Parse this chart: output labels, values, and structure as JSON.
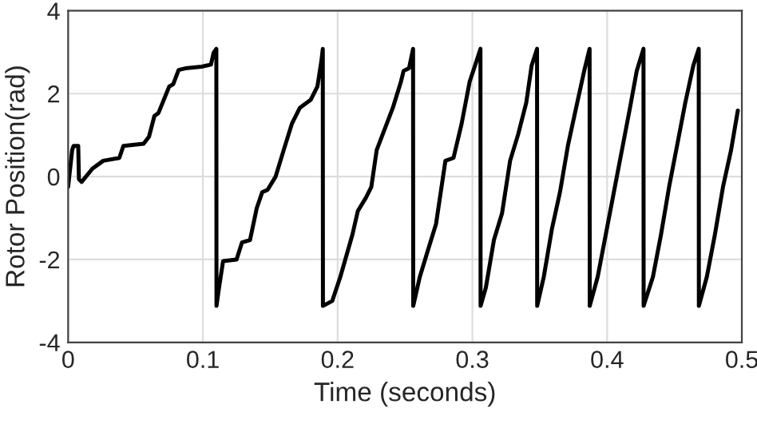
{
  "chart_data": {
    "type": "line",
    "xlabel": "Time (seconds)",
    "ylabel": "Rotor Position(rad)",
    "xlim": [
      0,
      0.5
    ],
    "xticks": [
      0,
      0.1,
      0.2,
      0.3,
      0.4,
      0.5
    ],
    "ylim": [
      -4,
      4
    ],
    "yticks": [
      -4,
      -2,
      0,
      2,
      4
    ],
    "grid": true,
    "legend": false,
    "line_style": "solid",
    "marker": "none",
    "series": [
      {
        "color": "#000000",
        "x": [
          0,
          0.003,
          0.004,
          0.0075,
          0.008,
          0.01,
          0.018,
          0.026,
          0.038,
          0.041,
          0.056,
          0.06,
          0.064,
          0.067,
          0.075,
          0.078,
          0.082,
          0.087,
          0.099,
          0.106,
          0.108,
          0.11,
          0.1101,
          0.112,
          0.115,
          0.125,
          0.129,
          0.135,
          0.14,
          0.144,
          0.148,
          0.154,
          0.16,
          0.166,
          0.172,
          0.18,
          0.185,
          0.188,
          0.189,
          0.1891,
          0.196,
          0.202,
          0.211,
          0.215,
          0.221,
          0.225,
          0.229,
          0.235,
          0.241,
          0.247,
          0.249,
          0.253,
          0.256,
          0.2561,
          0.261,
          0.267,
          0.273,
          0.28,
          0.286,
          0.292,
          0.298,
          0.302,
          0.306,
          0.3061,
          0.31,
          0.316,
          0.322,
          0.328,
          0.334,
          0.34,
          0.344,
          0.348,
          0.3481,
          0.353,
          0.359,
          0.365,
          0.371,
          0.377,
          0.383,
          0.387,
          0.3871,
          0.393,
          0.399,
          0.405,
          0.411,
          0.417,
          0.422,
          0.427,
          0.4271,
          0.434,
          0.44,
          0.446,
          0.452,
          0.458,
          0.464,
          0.468,
          0.4681,
          0.474,
          0.48,
          0.486,
          0.492,
          0.497
        ],
        "values": [
          -0.25,
          0.64,
          0.74,
          0.74,
          -0.06,
          -0.13,
          0.19,
          0.38,
          0.45,
          0.74,
          0.79,
          0.96,
          1.46,
          1.53,
          2.17,
          2.23,
          2.57,
          2.61,
          2.65,
          2.7,
          2.99,
          3.08,
          -3.12,
          -2.68,
          -2.04,
          -2.0,
          -1.59,
          -1.53,
          -0.76,
          -0.38,
          -0.32,
          0,
          0.64,
          1.27,
          1.66,
          1.85,
          2.17,
          2.8,
          3.08,
          -3.12,
          -3.0,
          -2.42,
          -1.4,
          -0.83,
          -0.51,
          -0.25,
          0.64,
          1.15,
          1.66,
          2.29,
          2.55,
          2.61,
          3.08,
          -3.12,
          -2.42,
          -1.78,
          -1.15,
          0.38,
          0.45,
          1.27,
          2.29,
          2.68,
          3.08,
          -3.12,
          -2.68,
          -1.53,
          -0.89,
          0.38,
          1.02,
          1.78,
          2.68,
          3.08,
          -3.12,
          -2.42,
          -1.27,
          -0.38,
          0.76,
          1.66,
          2.55,
          3.08,
          -3.12,
          -2.42,
          -1.4,
          -0.38,
          0.64,
          1.66,
          2.55,
          3.08,
          -3.12,
          -2.42,
          -1.4,
          -0.25,
          0.76,
          1.78,
          2.68,
          3.08,
          -3.12,
          -2.42,
          -1.4,
          -0.25,
          0.64,
          1.59
        ]
      }
    ]
  }
}
